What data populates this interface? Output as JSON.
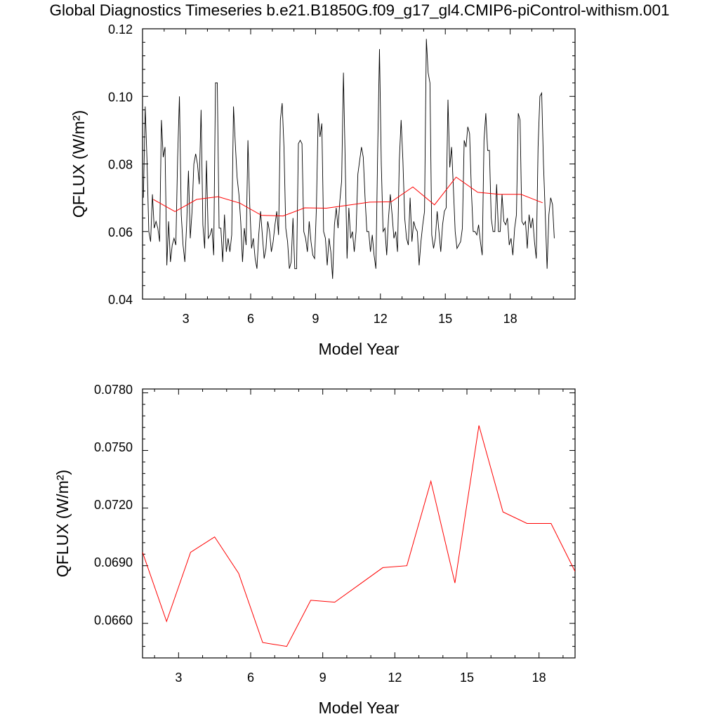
{
  "title": "Global Diagnostics Timeseries b.e21.B1850G.f09_g17_gl4.CMIP6-piControl-withism.001",
  "colors": {
    "monthly": "#000000",
    "annual": "#ff0000",
    "frame": "#000000"
  },
  "chart_data": [
    {
      "type": "line",
      "xlabel": "Model Year",
      "ylabel": "QFLUX (W/m²)",
      "xlim": [
        1.0,
        21.0
      ],
      "ylim": [
        0.04,
        0.12
      ],
      "xticks": [
        3,
        6,
        9,
        12,
        15,
        18
      ],
      "xtick_labels": [
        "3",
        "6",
        "9",
        "12",
        "15",
        "18"
      ],
      "yticks": [
        0.04,
        0.06,
        0.08,
        0.1,
        0.12
      ],
      "ytick_labels": [
        "0.04",
        "0.06",
        "0.08",
        "0.10",
        "0.12"
      ],
      "series": [
        {
          "key": "monthly",
          "x_start": 1.04,
          "x_step": 0.0833333,
          "values": [
            0.07,
            0.097,
            0.081,
            0.06,
            0.057,
            0.071,
            0.061,
            0.063,
            0.061,
            0.057,
            0.093,
            0.082,
            0.085,
            0.05,
            0.063,
            0.051,
            0.056,
            0.058,
            0.056,
            0.082,
            0.1,
            0.065,
            0.056,
            0.051,
            0.062,
            0.078,
            0.058,
            0.066,
            0.08,
            0.083,
            0.08,
            0.074,
            0.096,
            0.062,
            0.055,
            0.081,
            0.058,
            0.059,
            0.061,
            0.053,
            0.104,
            0.104,
            0.061,
            0.061,
            0.051,
            0.065,
            0.054,
            0.058,
            0.054,
            0.059,
            0.097,
            0.086,
            0.076,
            0.071,
            0.063,
            0.051,
            0.061,
            0.056,
            0.087,
            0.068,
            0.055,
            0.058,
            0.052,
            0.049,
            0.059,
            0.066,
            0.059,
            0.052,
            0.055,
            0.063,
            0.06,
            0.054,
            0.057,
            0.062,
            0.066,
            0.059,
            0.093,
            0.098,
            0.085,
            0.061,
            0.057,
            0.049,
            0.051,
            0.064,
            0.049,
            0.049,
            0.086,
            0.087,
            0.086,
            0.06,
            0.058,
            0.054,
            0.063,
            0.057,
            0.053,
            0.052,
            0.067,
            0.095,
            0.088,
            0.092,
            0.06,
            0.058,
            0.05,
            0.058,
            0.054,
            0.046,
            0.062,
            0.067,
            0.061,
            0.069,
            0.075,
            0.107,
            0.08,
            0.052,
            0.067,
            0.058,
            0.06,
            0.054,
            0.06,
            0.077,
            0.081,
            0.085,
            0.082,
            0.07,
            0.06,
            0.06,
            0.054,
            0.059,
            0.053,
            0.049,
            0.084,
            0.114,
            0.08,
            0.06,
            0.061,
            0.053,
            0.064,
            0.071,
            0.065,
            0.058,
            0.06,
            0.054,
            0.081,
            0.093,
            0.081,
            0.064,
            0.058,
            0.056,
            0.07,
            0.057,
            0.063,
            0.061,
            0.06,
            0.05,
            0.057,
            0.062,
            0.066,
            0.117,
            0.107,
            0.104,
            0.059,
            0.055,
            0.058,
            0.066,
            0.06,
            0.054,
            0.062,
            0.066,
            0.067,
            0.099,
            0.079,
            0.085,
            0.073,
            0.06,
            0.055,
            0.056,
            0.057,
            0.061,
            0.087,
            0.085,
            0.091,
            0.089,
            0.072,
            0.06,
            0.06,
            0.059,
            0.062,
            0.057,
            0.053,
            0.087,
            0.095,
            0.084,
            0.084,
            0.064,
            0.06,
            0.06,
            0.074,
            0.06,
            0.06,
            0.071,
            0.063,
            0.062,
            0.064,
            0.056,
            0.058,
            0.053,
            0.061,
            0.065,
            0.095,
            0.093,
            0.063,
            0.062,
            0.063,
            0.055,
            0.065,
            0.061,
            0.064,
            0.057,
            0.052,
            0.085,
            0.1,
            0.101,
            0.08,
            0.065,
            0.049,
            0.065,
            0.07,
            0.068,
            0.058
          ]
        },
        {
          "key": "annual",
          "x": [
            1.5,
            2.5,
            3.5,
            4.5,
            5.5,
            6.5,
            7.5,
            8.5,
            9.5,
            10.5,
            11.5,
            12.5,
            13.5,
            14.5,
            15.5,
            16.5,
            17.5,
            18.5,
            19.5
          ],
          "values": [
            0.0695,
            0.0659,
            0.0695,
            0.0703,
            0.0684,
            0.0648,
            0.0646,
            0.067,
            0.0669,
            0.0678,
            0.0687,
            0.0688,
            0.0732,
            0.0679,
            0.0761,
            0.0716,
            0.071,
            0.071,
            0.0685
          ]
        }
      ]
    },
    {
      "type": "line",
      "xlabel": "Model Year",
      "ylabel": "QFLUX (W/m²)",
      "xlim": [
        1.5,
        19.5
      ],
      "ylim": [
        0.064,
        0.078
      ],
      "xticks": [
        3,
        6,
        9,
        12,
        15,
        18
      ],
      "xtick_labels": [
        "3",
        "6",
        "9",
        "12",
        "15",
        "18"
      ],
      "yticks": [
        0.066,
        0.069,
        0.072,
        0.075,
        0.078
      ],
      "ytick_labels": [
        "0.0660",
        "0.0690",
        "0.0720",
        "0.0750",
        "0.0780"
      ],
      "series": [
        {
          "key": "annual",
          "x": [
            1.5,
            2.5,
            3.5,
            4.5,
            5.5,
            6.5,
            7.5,
            8.5,
            9.5,
            10.5,
            11.5,
            12.5,
            13.5,
            14.5,
            15.5,
            16.5,
            17.5,
            18.5,
            19.5
          ],
          "values": [
            0.0695,
            0.0659,
            0.0695,
            0.0703,
            0.0684,
            0.0648,
            0.0646,
            0.067,
            0.0669,
            0.0678,
            0.0687,
            0.0688,
            0.0732,
            0.0679,
            0.0761,
            0.0716,
            0.071,
            0.071,
            0.0685
          ]
        }
      ]
    }
  ]
}
